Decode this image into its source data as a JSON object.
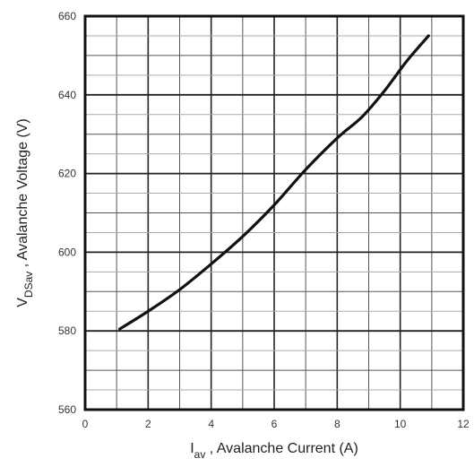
{
  "chart_data": {
    "type": "line",
    "title": "",
    "xlim": [
      0,
      12
    ],
    "ylim": [
      560,
      660
    ],
    "x_ticks": [
      "0",
      "2",
      "4",
      "6",
      "8",
      "10",
      "12"
    ],
    "y_ticks": [
      "560",
      "580",
      "600",
      "620",
      "640",
      "660"
    ],
    "grid": true,
    "xlabel": {
      "main": "I",
      "sub": "av",
      "rest": " , Avalanche Current  (A)"
    },
    "ylabel": {
      "main": "V",
      "sub": "DSav",
      "rest": " , Avalanche Voltage  (V)"
    },
    "series": [
      {
        "x": [
          1.1,
          2.0,
          3.0,
          4.0,
          5.0,
          6.0,
          7.0,
          8.0,
          8.8,
          9.5,
          10.2,
          10.9
        ],
        "y": [
          580.5,
          585,
          590.5,
          597,
          604,
          612,
          621,
          629,
          634.5,
          641,
          648.5,
          655
        ],
        "color": "#111111"
      }
    ]
  }
}
